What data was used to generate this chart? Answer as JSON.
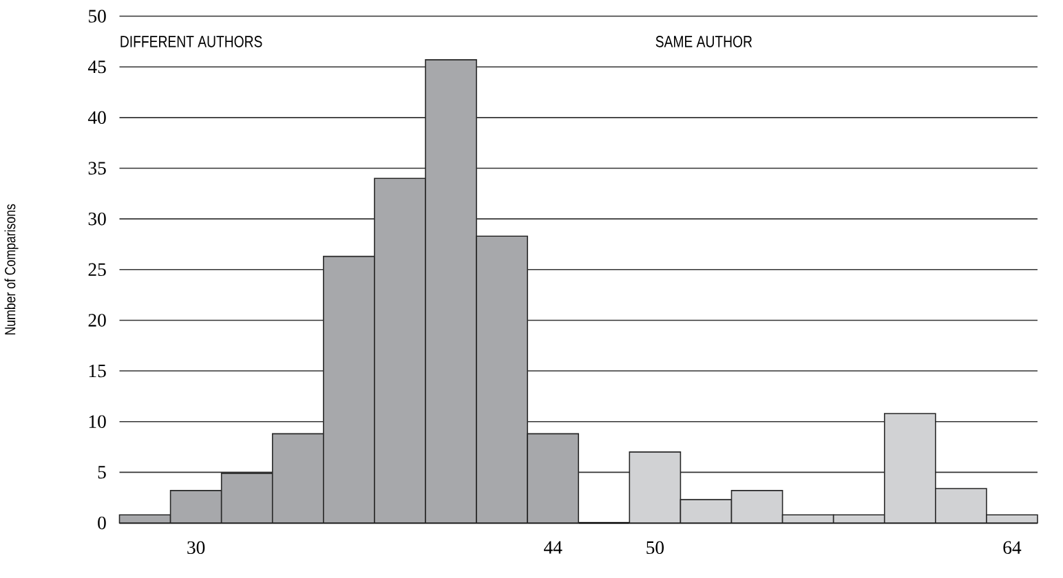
{
  "chart_data": {
    "type": "bar",
    "ylabel": "Number of Comparisons",
    "annotations": [
      "DIFFERENT AUTHORS",
      "SAME AUTHOR"
    ],
    "categories": [
      null,
      "30",
      null,
      null,
      null,
      null,
      null,
      null,
      "44",
      null,
      "50",
      null,
      null,
      null,
      null,
      null,
      null,
      "64"
    ],
    "values": [
      0.8,
      3.2,
      4.9,
      8.8,
      26.3,
      34.0,
      45.7,
      28.3,
      8.8,
      null,
      7.0,
      2.3,
      3.2,
      0.8,
      0.8,
      10.8,
      3.4,
      0.8
    ],
    "colors": [
      "#a7a8ab",
      "#a7a8ab",
      "#a7a8ab",
      "#a7a8ab",
      "#a7a8ab",
      "#a7a8ab",
      "#a7a8ab",
      "#a7a8ab",
      "#a7a8ab",
      "#a7a8ab",
      "#d1d2d4",
      "#d1d2d4",
      "#d1d2d4",
      "#d1d2d4",
      "#d1d2d4",
      "#d1d2d4",
      "#d1d2d4",
      "#d1d2d4"
    ],
    "ylim": [
      0,
      50
    ],
    "yticks": [
      0,
      5,
      10,
      15,
      20,
      25,
      30,
      35,
      40,
      45,
      50
    ],
    "grid": "y"
  }
}
